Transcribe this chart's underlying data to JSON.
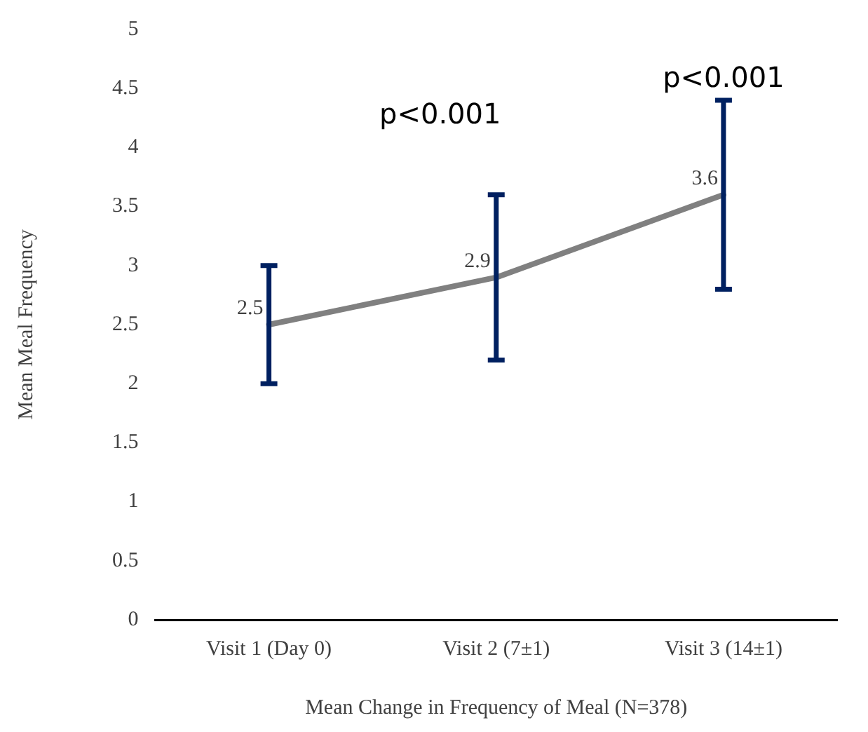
{
  "chart_data": {
    "type": "line",
    "xlabel": "Mean Change in Frequency of Meal (N=378)",
    "ylabel": "Mean Meal Frequency",
    "categories": [
      "Visit 1 (Day 0)",
      "Visit 2 (7±1)",
      "Visit 3 (14±1)"
    ],
    "series": [
      {
        "color": "#808080",
        "values": [
          2.5,
          2.9,
          3.6
        ],
        "errors": [
          [
            2,
            3
          ],
          [
            2.2,
            3.6
          ],
          [
            2.8,
            4.4
          ]
        ]
      }
    ],
    "ylim": [
      0,
      5
    ],
    "yticks": [
      0,
      0.5,
      1,
      1.5,
      2,
      2.5,
      3,
      3.5,
      4,
      4.5,
      5
    ],
    "grid": false,
    "legend": false,
    "marker": "none",
    "data_labels": true,
    "annotations": [
      "p<0.001",
      "p<0.001"
    ]
  }
}
